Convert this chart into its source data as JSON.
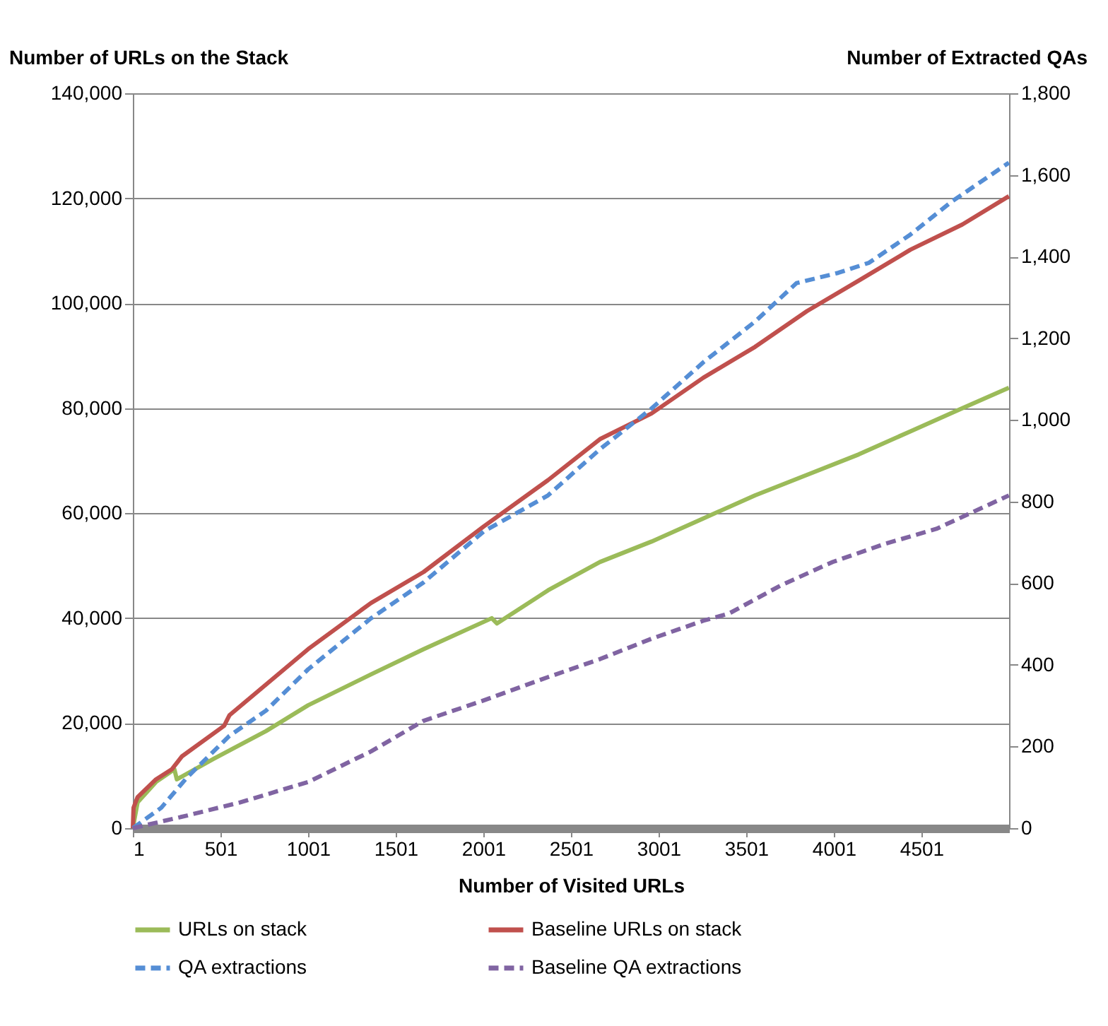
{
  "chart_data": {
    "type": "line",
    "xlabel": "Number of Visited URLs",
    "ylabel": "Number of URLs on the Stack",
    "y2label": "Number of Extracted QAs",
    "xlim": [
      1,
      5001
    ],
    "xticks": [
      1,
      501,
      1001,
      1501,
      2001,
      2501,
      3001,
      3501,
      4001,
      4501
    ],
    "ylim": [
      0,
      140000
    ],
    "yticks": [
      0,
      {
        "value": 20000,
        "label": "20,000"
      },
      {
        "value": 40000,
        "label": "40,000"
      },
      {
        "value": 60000,
        "label": "60,000"
      },
      {
        "value": 80000,
        "label": "80,000"
      },
      {
        "value": 100000,
        "label": "100,000"
      },
      {
        "value": 120000,
        "label": "120,000"
      },
      {
        "value": 140000,
        "label": "140,000"
      }
    ],
    "y2lim": [
      0,
      1800
    ],
    "y2ticks": [
      0,
      200,
      400,
      600,
      800,
      {
        "value": 1000,
        "label": "1,000"
      },
      {
        "value": 1200,
        "label": "1,200"
      },
      {
        "value": 1400,
        "label": "1,400"
      },
      {
        "value": 1600,
        "label": "1,600"
      },
      {
        "value": 1800,
        "label": "1,800"
      }
    ],
    "grid": "y",
    "legend": "bottom",
    "marker": "none",
    "series": [
      {
        "name": "URLs on stack",
        "color": "#9bbb59",
        "line_style": "solid",
        "x": [
          1,
          28,
          133,
          238,
          252,
          462,
          761,
          1001,
          1360,
          1660,
          2049,
          2079,
          2370,
          2666,
          2961,
          3256,
          3552,
          3848,
          4143,
          4438,
          4734,
          5000
        ],
        "values": [
          0,
          4900,
          8800,
          11200,
          9300,
          13200,
          18500,
          23400,
          29300,
          34100,
          40000,
          39000,
          45300,
          50700,
          54600,
          59000,
          63400,
          67300,
          71200,
          75600,
          80000,
          83900
        ]
      },
      {
        "name": "Baseline URLs on stack",
        "color": "#c0504d",
        "line_style": "solid",
        "x": [
          1,
          5,
          28,
          133,
          223,
          282,
          522,
          552,
          1001,
          1360,
          1660,
          2004,
          2370,
          2666,
          2961,
          3256,
          3552,
          3848,
          4143,
          4438,
          4734,
          5000
        ],
        "values": [
          0,
          3900,
          5900,
          9300,
          11200,
          13700,
          19500,
          21500,
          34100,
          42900,
          48800,
          57500,
          66300,
          74100,
          79000,
          85800,
          91700,
          98500,
          104300,
          110200,
          115000,
          120400
        ]
      },
      {
        "name": "QA extractions",
        "color": "#558ed5",
        "line_style": "dashed",
        "axis": "y2",
        "x": [
          1,
          163,
          312,
          552,
          761,
          1001,
          1360,
          1660,
          2004,
          2370,
          2666,
          2961,
          3256,
          3552,
          3788,
          4025,
          4202,
          4438,
          4675,
          5000
        ],
        "values": [
          0,
          50,
          125,
          226,
          288,
          389,
          514,
          602,
          727,
          815,
          928,
          1028,
          1141,
          1241,
          1335,
          1360,
          1385,
          1454,
          1535,
          1630
        ]
      },
      {
        "name": "Baseline QA extractions",
        "color": "#8064a2",
        "line_style": "dashed",
        "axis": "y2",
        "x": [
          1,
          312,
          612,
          1001,
          1360,
          1660,
          2004,
          2370,
          2666,
          2961,
          3256,
          3404,
          3700,
          3995,
          4290,
          4586,
          5000
        ],
        "values": [
          0,
          31,
          63,
          113,
          188,
          263,
          313,
          370,
          414,
          464,
          508,
          526,
          595,
          652,
          696,
          733,
          815
        ]
      }
    ]
  }
}
